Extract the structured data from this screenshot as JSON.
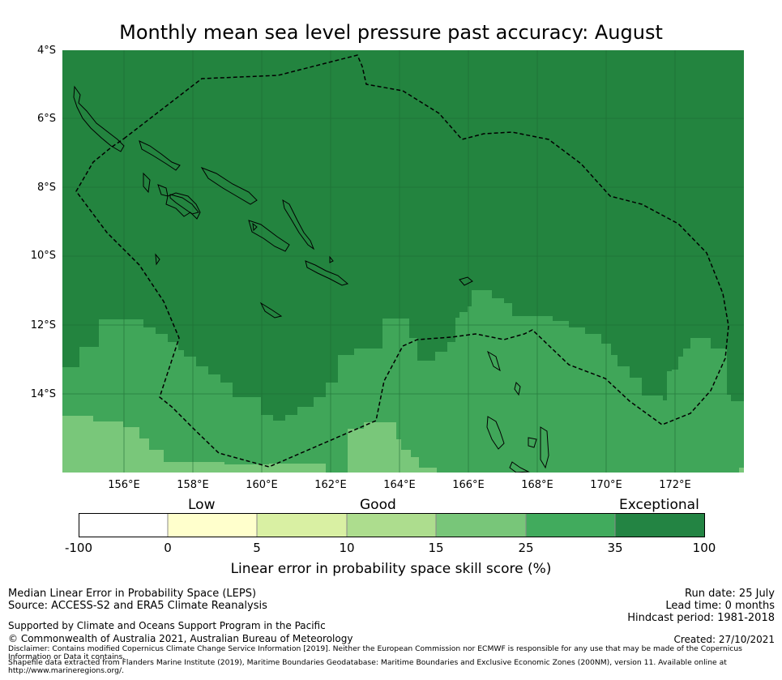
{
  "title": "Monthly mean sea level pressure past accuracy: August",
  "map": {
    "y_ticks": [
      "4°S",
      "6°S",
      "8°S",
      "10°S",
      "12°S",
      "14°S"
    ],
    "x_ticks": [
      "156°E",
      "158°E",
      "160°E",
      "162°E",
      "164°E",
      "166°E",
      "168°E",
      "170°E",
      "172°E"
    ],
    "lon_range": [
      154.2,
      174.0
    ],
    "lat_range": [
      -16.3,
      -4.0
    ],
    "colors": {
      "exceptional": "#23843f",
      "35_to_100": "#23843f",
      "25_to_35": "#40a659",
      "15_to_25": "#79c77a",
      "boundary_line": "#000000"
    },
    "gridlines": true,
    "region_boundary": "dashed EEZ outline"
  },
  "colorbar": {
    "categories": [
      "Low",
      "Good",
      "Exceptional"
    ],
    "ticks": [
      "-100",
      "0",
      "5",
      "10",
      "15",
      "25",
      "35",
      "100"
    ],
    "colors": [
      "#ffffff",
      "#ffffcc",
      "#d9f0a3",
      "#addd8e",
      "#78c679",
      "#41ab5d",
      "#238443"
    ],
    "label": "Linear error in probability space skill score (%)"
  },
  "footer": {
    "left": [
      "Median Linear Error in Probability Space (LEPS)",
      "Source: ACCESS-S2 and ERA5 Climate Reanalysis",
      "Supported by Climate and Oceans Support Program in the Pacific",
      "© Commonwealth of Australia 2021, Australian Bureau of Meteorology"
    ],
    "right": [
      "Run date: 25 July",
      "Lead time: 0 months",
      "Hindcast period: 1981-2018",
      "Created: 27/10/2021"
    ],
    "disclaimer": "Disclaimer: Contains modified Copernicus Climate Change Service Information [2019]. Neither the European Commission nor ECMWF is responsible for any use that may be made of the Copernicus Information or Data it contains.",
    "shapefile": "Shapefile data extracted from Flanders Marine Institute (2019), Maritime Boundaries Geodatabase: Maritime Boundaries and Exclusive Economic Zones (200NM), version 11. Available online at http://www.marineregions.org/."
  }
}
